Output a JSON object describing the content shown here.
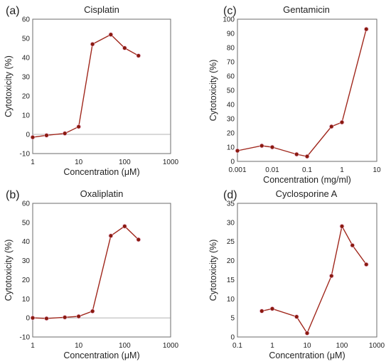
{
  "chart_data": [
    {
      "type": "line",
      "panel": "(a)",
      "title": "Cisplatin",
      "xlabel": "Concentration (μM)",
      "ylabel": "Cytotoxicity (%)",
      "xscale": "log",
      "xlim": [
        1,
        1000
      ],
      "ylim": [
        -10,
        60
      ],
      "xticks": [
        "1",
        "10",
        "100",
        "1000"
      ],
      "yticks": [
        "-10",
        "0",
        "10",
        "20",
        "30",
        "40",
        "50",
        "60"
      ],
      "series": [
        {
          "x": [
            1,
            2,
            5,
            10,
            20,
            50,
            100,
            200
          ],
          "y": [
            -1.5,
            -0.5,
            0.5,
            4,
            47,
            52,
            45,
            41
          ]
        }
      ],
      "color": "#8b1a10",
      "grid": false
    },
    {
      "type": "line",
      "panel": "(c)",
      "title": "Gentamicin",
      "xlabel": "Concentration (mg/ml)",
      "ylabel": "Cytotoxicity (%)",
      "xscale": "log",
      "xlim": [
        0.001,
        10
      ],
      "ylim": [
        0,
        100
      ],
      "xticks": [
        "0.001",
        "0.01",
        "0.1",
        "1",
        "10"
      ],
      "yticks": [
        "0",
        "10",
        "20",
        "30",
        "40",
        "50",
        "60",
        "70",
        "80",
        "90",
        "100"
      ],
      "series": [
        {
          "x": [
            0.001,
            0.005,
            0.01,
            0.05,
            0.1,
            0.5,
            1,
            5
          ],
          "y": [
            7.5,
            11,
            10,
            5,
            3.5,
            24.5,
            27.5,
            93
          ]
        }
      ],
      "color": "#8b1a10",
      "grid": false
    },
    {
      "type": "line",
      "panel": "(b)",
      "title": "Oxaliplatin",
      "xlabel": "Concentration (μM)",
      "ylabel": "Cytotoxicity (%)",
      "xscale": "log",
      "xlim": [
        1,
        1000
      ],
      "ylim": [
        -10,
        60
      ],
      "xticks": [
        "1",
        "10",
        "100",
        "1000"
      ],
      "yticks": [
        "-10",
        "0",
        "10",
        "20",
        "30",
        "40",
        "50",
        "60"
      ],
      "series": [
        {
          "x": [
            1,
            2,
            5,
            10,
            20,
            50,
            100,
            200
          ],
          "y": [
            0,
            -0.3,
            0.3,
            0.8,
            3.5,
            43,
            48,
            41
          ]
        }
      ],
      "color": "#8b1a10",
      "grid": false
    },
    {
      "type": "line",
      "panel": "(d)",
      "title": "Cyclosporine A",
      "xlabel": "Concentration (μM)",
      "ylabel": "Cytotoxicity (%)",
      "xscale": "log",
      "xlim": [
        0.1,
        1000
      ],
      "ylim": [
        0,
        35
      ],
      "xticks": [
        "0.1",
        "1",
        "10",
        "100",
        "1000"
      ],
      "yticks": [
        "0",
        "5",
        "10",
        "15",
        "20",
        "25",
        "30",
        "35"
      ],
      "series": [
        {
          "x": [
            0.5,
            1,
            5,
            10,
            50,
            100,
            200,
            500
          ],
          "y": [
            6.8,
            7.4,
            5.3,
            1,
            16,
            29,
            24,
            19
          ]
        }
      ],
      "color": "#8b1a10",
      "grid": false
    }
  ]
}
